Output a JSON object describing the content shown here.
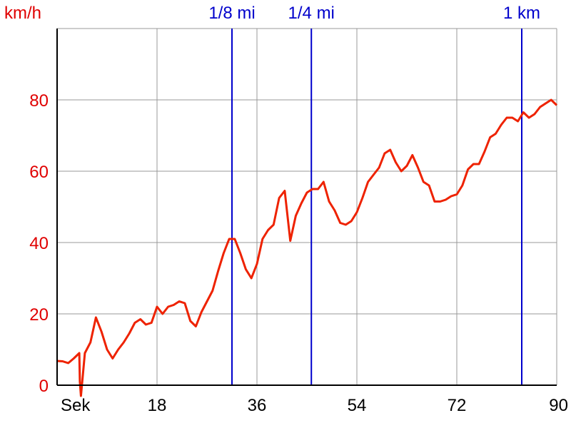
{
  "chart_data": {
    "type": "line",
    "title": "",
    "ylabel": "km/h",
    "xlabel": "",
    "x_unit_label": "Sek",
    "xlim": [
      0,
      90
    ],
    "ylim": [
      0,
      100
    ],
    "x_ticks": [
      {
        "value": 18,
        "label": "18"
      },
      {
        "value": 36,
        "label": "36"
      },
      {
        "value": 54,
        "label": "54"
      },
      {
        "value": 72,
        "label": "72"
      },
      {
        "value": 90,
        "label": "90"
      }
    ],
    "y_ticks": [
      {
        "value": 0,
        "label": "0"
      },
      {
        "value": 20,
        "label": "20"
      },
      {
        "value": 40,
        "label": "40"
      },
      {
        "value": 60,
        "label": "60"
      },
      {
        "value": 80,
        "label": "80"
      }
    ],
    "grid": true,
    "markers": [
      {
        "x": 31.5,
        "label": "1/8 mi"
      },
      {
        "x": 45.8,
        "label": "1/4 mi"
      },
      {
        "x": 83.7,
        "label": "1 km"
      }
    ],
    "colors": {
      "line": "#ee2200",
      "marker": "#0000cc",
      "y_labels": "#e00000",
      "grid": "#999999",
      "axis": "#000000"
    },
    "series": [
      {
        "x": [
          0,
          1,
          2,
          3,
          4,
          4.1,
          4.3,
          5,
          6,
          7,
          8,
          9,
          10,
          11,
          12,
          13,
          14,
          15,
          16,
          17,
          18,
          19,
          20,
          21,
          22,
          23,
          24,
          25,
          26,
          27,
          28,
          29,
          30,
          31,
          32,
          33,
          34,
          35,
          36,
          37,
          38,
          39,
          40,
          41,
          42,
          43,
          44,
          45,
          46,
          47,
          48,
          49,
          50,
          51,
          52,
          53,
          54,
          55,
          56,
          57,
          58,
          59,
          60,
          61,
          62,
          63,
          64,
          65,
          66,
          67,
          68,
          69,
          70,
          71,
          72,
          73,
          74,
          75,
          76,
          77,
          78,
          79,
          80,
          81,
          82,
          83,
          84,
          85,
          86,
          87,
          88,
          89,
          90
        ],
        "values": [
          6.8,
          6.7,
          6.2,
          7.5,
          9,
          1,
          -3,
          9,
          12,
          19,
          15,
          10,
          7.5,
          10,
          12,
          14.5,
          17.5,
          18.5,
          17,
          17.5,
          22,
          20,
          22,
          22.5,
          23.5,
          23,
          18,
          16.5,
          20.5,
          23.5,
          26.5,
          32,
          37,
          41,
          41,
          37,
          32.5,
          30,
          34,
          41,
          43.5,
          45,
          52.5,
          54.5,
          40.5,
          47.5,
          51,
          54,
          55,
          55,
          57,
          51.5,
          49,
          45.5,
          45,
          46,
          48.5,
          52.5,
          57,
          59,
          61,
          65,
          66,
          62.5,
          60,
          61.5,
          64.5,
          61,
          57,
          56,
          51.5,
          51.5,
          52,
          53,
          53.5,
          56,
          60.5,
          62,
          62,
          65.5,
          69.5,
          70.5,
          73,
          75,
          75,
          74,
          76.5,
          75,
          76,
          78,
          79,
          80,
          78.5
        ]
      }
    ]
  }
}
